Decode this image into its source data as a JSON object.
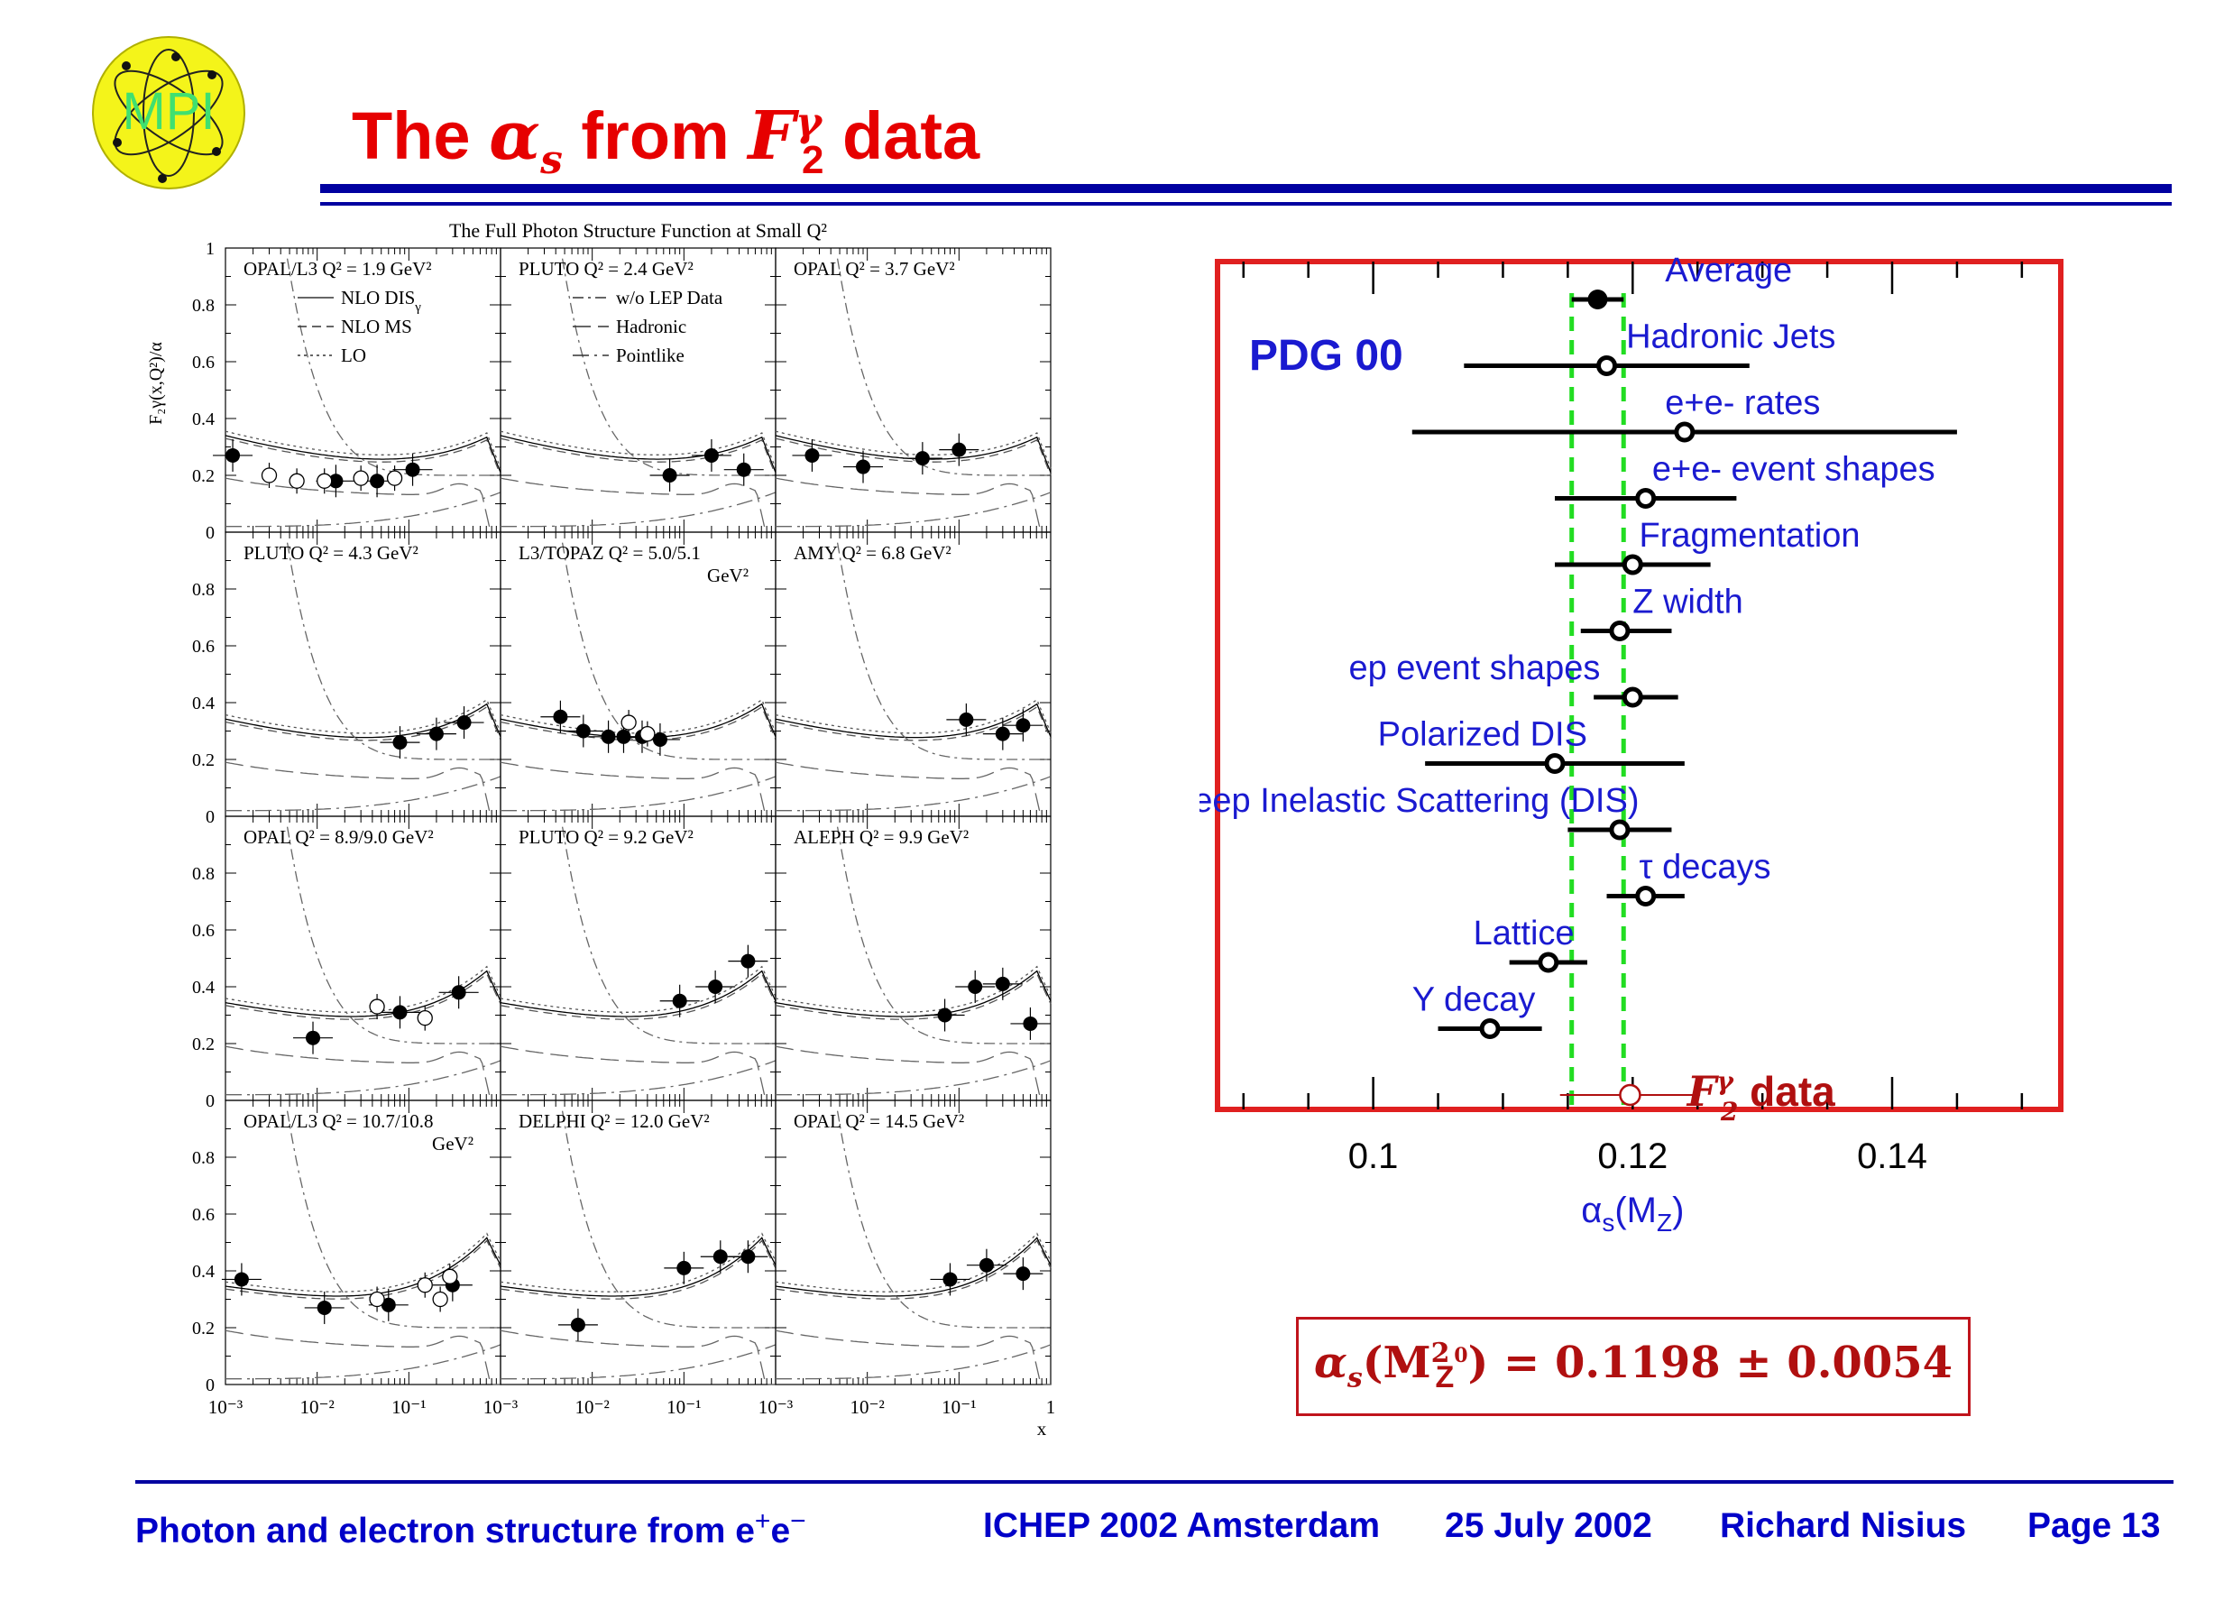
{
  "logo": {
    "text": "MPI"
  },
  "title": {
    "prefix": "The ",
    "alpha": "α",
    "alpha_sub": "s",
    "middle": " from ",
    "F": "F",
    "F_sup": "γ",
    "F_sub": "2",
    "suffix": " data"
  },
  "left_figure": {
    "title": "The Full Photon Structure Function at Small Q",
    "title_sup": "2"
  },
  "footer": {
    "talk": "Photon and electron structure from e",
    "talk_sup1": "+",
    "talk_e2": "e",
    "talk_sup2": "−",
    "conference": "ICHEP 2002 Amsterdam",
    "date": "25 July 2002",
    "author": "Richard Nisius",
    "page": "Page 13"
  },
  "result": {
    "text": "α",
    "sub": "s",
    "paren_open": "(M",
    "msup": "2",
    "msub": "Z",
    "msub_sup": "0",
    "rest": ") = 0.1198 ± 0.0054"
  },
  "colors": {
    "title": "#e60000",
    "rule": "#0000a0",
    "frame": "#e02020",
    "band": "#22dd22",
    "label": "#1a1ad0",
    "result": "#b01010"
  },
  "chart_data": [
    {
      "type": "scatter",
      "title": "The Full Photon Structure Function at Small Q²",
      "ylabel": "F₂γ(x,Q²)/α",
      "xlabel": "x",
      "x_scale": "log",
      "xlim": [
        0.001,
        1
      ],
      "ylim": [
        0,
        1
      ],
      "x_ticks": [
        "10⁻³",
        "10⁻²",
        "10⁻¹",
        "1"
      ],
      "y_ticks": [
        "0",
        "0.2",
        "0.4",
        "0.6",
        "0.8",
        "1"
      ],
      "legends": [
        {
          "panel": 0,
          "entries": [
            {
              "name": "NLO DIS",
              "sub": "γ",
              "style": "solid"
            },
            {
              "name": "NLO MS",
              "style": "dashed"
            },
            {
              "name": "LO",
              "style": "dotted"
            }
          ]
        },
        {
          "panel": 1,
          "entries": [
            {
              "name": "w/o LEP Data",
              "style": "dashdot"
            },
            {
              "name": "Hadronic",
              "style": "longdash"
            },
            {
              "name": "Pointlike",
              "style": "dashdotlong"
            }
          ]
        }
      ],
      "panels": [
        {
          "label": "OPAL/L3  Q² = 1.9 GeV²",
          "label2": "",
          "filled": [
            [
              0.0012,
              0.27
            ],
            [
              0.016,
              0.18
            ],
            [
              0.045,
              0.18
            ],
            [
              0.11,
              0.22
            ]
          ],
          "open": [
            [
              0.003,
              0.2
            ],
            [
              0.006,
              0.18
            ],
            [
              0.012,
              0.18
            ],
            [
              0.03,
              0.19
            ],
            [
              0.07,
              0.19
            ]
          ]
        },
        {
          "label": "PLUTO  Q² = 2.4 GeV²",
          "label2": "",
          "filled": [
            [
              0.07,
              0.2
            ],
            [
              0.2,
              0.27
            ],
            [
              0.45,
              0.22
            ]
          ],
          "open": []
        },
        {
          "label": "OPAL  Q² = 3.7 GeV²",
          "label2": "",
          "filled": [
            [
              0.0025,
              0.27
            ],
            [
              0.009,
              0.23
            ],
            [
              0.04,
              0.26
            ],
            [
              0.1,
              0.29
            ]
          ],
          "open": []
        },
        {
          "label": "PLUTO  Q² = 4.3 GeV²",
          "label2": "",
          "filled": [
            [
              0.08,
              0.26
            ],
            [
              0.2,
              0.29
            ],
            [
              0.4,
              0.33
            ]
          ],
          "open": []
        },
        {
          "label": "L3/TOPAZ   Q² = 5.0/5.1",
          "label2": "GeV²",
          "filled": [
            [
              0.0045,
              0.35
            ],
            [
              0.008,
              0.3
            ],
            [
              0.015,
              0.28
            ],
            [
              0.022,
              0.28
            ],
            [
              0.035,
              0.28
            ],
            [
              0.055,
              0.27
            ]
          ],
          "open": [
            [
              0.025,
              0.33
            ],
            [
              0.04,
              0.29
            ]
          ]
        },
        {
          "label": "AMY  Q² = 6.8 GeV²",
          "label2": "",
          "filled": [
            [
              0.12,
              0.34
            ],
            [
              0.3,
              0.29
            ],
            [
              0.5,
              0.32
            ]
          ],
          "open": []
        },
        {
          "label": "OPAL  Q² = 8.9/9.0 GeV²",
          "label2": "",
          "filled": [
            [
              0.009,
              0.22
            ],
            [
              0.08,
              0.31
            ],
            [
              0.35,
              0.38
            ]
          ],
          "open": [
            [
              0.045,
              0.33
            ],
            [
              0.15,
              0.29
            ]
          ]
        },
        {
          "label": "PLUTO  Q² = 9.2 GeV²",
          "label2": "",
          "filled": [
            [
              0.09,
              0.35
            ],
            [
              0.22,
              0.4
            ],
            [
              0.5,
              0.49
            ]
          ],
          "open": []
        },
        {
          "label": "ALEPH  Q² = 9.9 GeV²",
          "label2": "",
          "filled": [
            [
              0.07,
              0.3
            ],
            [
              0.15,
              0.4
            ],
            [
              0.3,
              0.41
            ],
            [
              0.6,
              0.27
            ]
          ],
          "open": []
        },
        {
          "label": "OPAL/L3  Q² = 10.7/10.8",
          "label2": "GeV²",
          "filled": [
            [
              0.0015,
              0.37
            ],
            [
              0.012,
              0.27
            ],
            [
              0.06,
              0.28
            ],
            [
              0.3,
              0.35
            ]
          ],
          "open": [
            [
              0.045,
              0.3
            ],
            [
              0.15,
              0.35
            ],
            [
              0.22,
              0.3
            ],
            [
              0.28,
              0.38
            ]
          ]
        },
        {
          "label": "DELPHI  Q² = 12.0 GeV²",
          "label2": "",
          "filled": [
            [
              0.007,
              0.21
            ],
            [
              0.1,
              0.41
            ],
            [
              0.25,
              0.45
            ],
            [
              0.5,
              0.45
            ]
          ],
          "open": []
        },
        {
          "label": "OPAL  Q² = 14.5 GeV²",
          "label2": "",
          "filled": [
            [
              0.08,
              0.37
            ],
            [
              0.2,
              0.42
            ],
            [
              0.5,
              0.39
            ]
          ],
          "open": []
        }
      ]
    },
    {
      "type": "scatter",
      "tag": "PDG 00",
      "xlabel": "α",
      "xlabel_sub": "s",
      "xlabel_paren": "(M",
      "xlabel_psub": "Z",
      "xlabel_close": ")",
      "xlim": [
        0.088,
        0.153
      ],
      "x_ticks": [
        "0.1",
        "0.12",
        "0.14"
      ],
      "x_tick_values": [
        0.1,
        0.12,
        0.14
      ],
      "band": [
        0.1153,
        0.1193
      ],
      "points": [
        {
          "label": "Average",
          "value": 0.1173,
          "lo": 0.1153,
          "hi": 0.1193,
          "marker": "filled"
        },
        {
          "label": "Hadronic Jets",
          "value": 0.118,
          "lo": 0.107,
          "hi": 0.129,
          "marker": "open"
        },
        {
          "label": "e+e- rates",
          "value": 0.124,
          "lo": 0.103,
          "hi": 0.145,
          "marker": "open"
        },
        {
          "label": "e+e- event shapes",
          "value": 0.121,
          "lo": 0.114,
          "hi": 0.128,
          "marker": "open"
        },
        {
          "label": "Fragmentation",
          "value": 0.12,
          "lo": 0.114,
          "hi": 0.126,
          "marker": "open"
        },
        {
          "label": "Z width",
          "value": 0.119,
          "lo": 0.116,
          "hi": 0.123,
          "marker": "open"
        },
        {
          "label": "ep event shapes",
          "value": 0.12,
          "lo": 0.117,
          "hi": 0.1235,
          "marker": "open"
        },
        {
          "label": "Polarized DIS",
          "value": 0.114,
          "lo": 0.104,
          "hi": 0.124,
          "marker": "open"
        },
        {
          "label": "Deep Inelastic Scattering (DIS)",
          "value": 0.119,
          "lo": 0.115,
          "hi": 0.123,
          "marker": "open"
        },
        {
          "label": "τ decays",
          "value": 0.121,
          "lo": 0.118,
          "hi": 0.124,
          "marker": "open"
        },
        {
          "label": "Lattice",
          "value": 0.1135,
          "lo": 0.1105,
          "hi": 0.1165,
          "marker": "open"
        },
        {
          "label": "Υ decay",
          "value": 0.109,
          "lo": 0.105,
          "hi": 0.113,
          "marker": "open"
        },
        {
          "label": "F2γ data",
          "value": 0.1198,
          "lo": 0.1144,
          "hi": 0.1252,
          "marker": "open-red"
        }
      ]
    }
  ]
}
